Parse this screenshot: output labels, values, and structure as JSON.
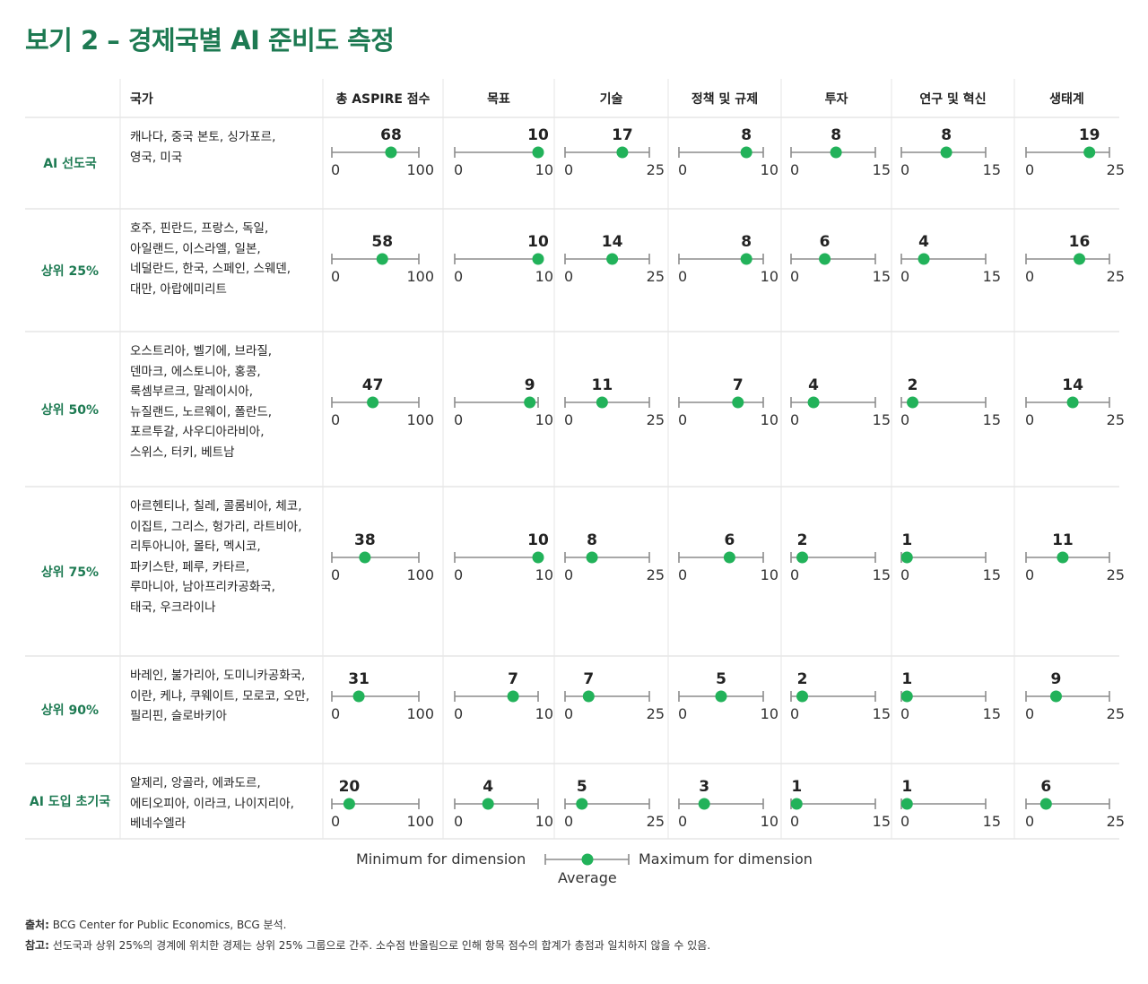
{
  "title": "보기 2 – 경제국별 AI 준비도 측정",
  "headers": {
    "countries": "국가",
    "dimensions": [
      "총 ASPIRE 점수",
      "목표",
      "기술",
      "정책 및 규제",
      "투자",
      "연구 및 혁신",
      "생태계"
    ]
  },
  "colors": {
    "accent": "#1d7a52",
    "marker": "#22b25a",
    "axis": "#8c8c8c",
    "divider": "#d8d8d8"
  },
  "chart_data": {
    "type": "dot-range",
    "dimensions": [
      "총 ASPIRE 점수",
      "목표",
      "기술",
      "정책 및 규제",
      "투자",
      "연구 및 혁신",
      "생태계"
    ],
    "ranges": [
      [
        0,
        100
      ],
      [
        0,
        10
      ],
      [
        0,
        25
      ],
      [
        0,
        10
      ],
      [
        0,
        15
      ],
      [
        0,
        15
      ],
      [
        0,
        25
      ]
    ],
    "groups": [
      {
        "name": "AI 선도국",
        "countries": [
          "캐나다, 중국 본토, 싱가포르,",
          "영국, 미국"
        ],
        "values": [
          68,
          10,
          17,
          8,
          8,
          8,
          19
        ]
      },
      {
        "name": "상위 25%",
        "countries": [
          "호주, 핀란드, 프랑스, 독일,",
          "아일랜드, 이스라엘, 일본,",
          "네덜란드, 한국, 스페인, 스웨덴,",
          "대만, 아랍에미리트"
        ],
        "values": [
          58,
          10,
          14,
          8,
          6,
          4,
          16
        ]
      },
      {
        "name": "상위 50%",
        "countries": [
          "오스트리아, 벨기에, 브라질,",
          "덴마크, 에스토니아, 홍콩,",
          "룩셈부르크, 말레이시아,",
          "뉴질랜드, 노르웨이, 폴란드,",
          "포르투갈, 사우디아라비아,",
          "스위스, 터키, 베트남"
        ],
        "values": [
          47,
          9,
          11,
          7,
          4,
          2,
          14
        ]
      },
      {
        "name": "상위 75%",
        "countries": [
          "아르헨티나, 칠레, 콜롬비아, 체코,",
          "이집트, 그리스, 헝가리, 라트비아,",
          "리투아니아, 몰타, 멕시코,",
          "파키스탄, 페루, 카타르,",
          "루마니아, 남아프리카공화국,",
          "태국, 우크라이나"
        ],
        "values": [
          38,
          10,
          8,
          6,
          2,
          1,
          11
        ]
      },
      {
        "name": "상위 90%",
        "countries": [
          "바레인, 불가리아, 도미니카공화국,",
          "이란, 케냐, 쿠웨이트, 모로코, 오만,",
          "필리핀, 슬로바키아"
        ],
        "values": [
          31,
          7,
          7,
          5,
          2,
          1,
          9
        ]
      },
      {
        "name": "AI 도입 초기국",
        "countries": [
          "알제리, 앙골라, 에콰도르,",
          "에티오피아, 이라크, 나이지리아,",
          "베네수엘라"
        ],
        "values": [
          20,
          4,
          5,
          3,
          1,
          1,
          6
        ]
      }
    ]
  },
  "legend": {
    "min_label": "Minimum for dimension",
    "max_label": "Maximum for dimension",
    "avg_label": "Average"
  },
  "footnotes": {
    "source_label": "출처:",
    "source_text": " BCG Center for Public Economics, BCG 분석.",
    "note_label": "참고:",
    "note_text": " 선도국과 상위 25%의 경계에 위치한 경제는 상위 25% 그룹으로 간주. 소수점 반올림으로 인해 항목 점수의 합계가 총점과 일치하지 않을 수 있음."
  }
}
